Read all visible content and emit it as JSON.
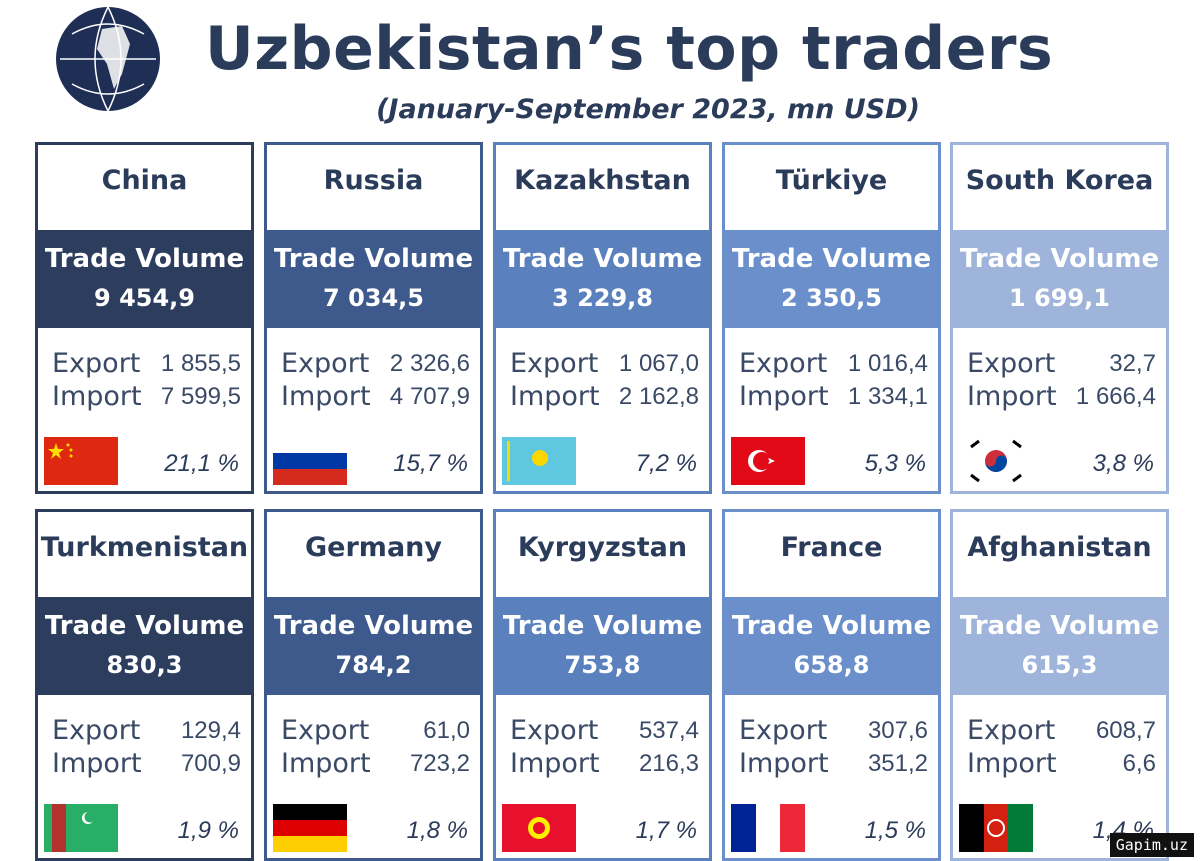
{
  "header": {
    "title": "Uzbekistan’s top traders",
    "subtitle": "(January-September 2023, mn USD)"
  },
  "cards": [
    {
      "country": "China",
      "trade_label": "Trade Volume",
      "trade_volume": "9 454,9",
      "export_label": "Export",
      "export": "1 855,5",
      "import_label": "Import",
      "import": "7 599,5",
      "share": "21,1 %"
    },
    {
      "country": "Russia",
      "trade_label": "Trade Volume",
      "trade_volume": "7 034,5",
      "export_label": "Export",
      "export": "2 326,6",
      "import_label": "Import",
      "import": "4 707,9",
      "share": "15,7 %"
    },
    {
      "country": "Kazakhstan",
      "trade_label": "Trade Volume",
      "trade_volume": "3 229,8",
      "export_label": "Export",
      "export": "1 067,0",
      "import_label": "Import",
      "import": "2 162,8",
      "share": "7,2 %"
    },
    {
      "country": "Türkiye",
      "trade_label": "Trade Volume",
      "trade_volume": "2 350,5",
      "export_label": "Export",
      "export": "1 016,4",
      "import_label": "Import",
      "import": "1 334,1",
      "share": "5,3 %"
    },
    {
      "country": "South Korea",
      "trade_label": "Trade Volume",
      "trade_volume": "1 699,1",
      "export_label": "Export",
      "export": "32,7",
      "import_label": "Import",
      "import": "1 666,4",
      "share": "3,8 %"
    },
    {
      "country": "Turkmenistan",
      "trade_label": "Trade Volume",
      "trade_volume": "830,3",
      "export_label": "Export",
      "export": "129,4",
      "import_label": "Import",
      "import": "700,9",
      "share": "1,9 %"
    },
    {
      "country": "Germany",
      "trade_label": "Trade Volume",
      "trade_volume": "784,2",
      "export_label": "Export",
      "export": "61,0",
      "import_label": "Import",
      "import": "723,2",
      "share": "1,8 %"
    },
    {
      "country": "Kyrgyzstan",
      "trade_label": "Trade Volume",
      "trade_volume": "753,8",
      "export_label": "Export",
      "export": "537,4",
      "import_label": "Import",
      "import": "216,3",
      "share": "1,7 %"
    },
    {
      "country": "France",
      "trade_label": "Trade Volume",
      "trade_volume": "658,8",
      "export_label": "Export",
      "export": "307,6",
      "import_label": "Import",
      "import": "351,2",
      "share": "1,5 %"
    },
    {
      "country": "Afghanistan",
      "trade_label": "Trade Volume",
      "trade_volume": "615,3",
      "export_label": "Export",
      "export": "608,7",
      "import_label": "Import",
      "import": "6,6",
      "share": "1,4 %"
    }
  ],
  "watermark": "Gapim.uz"
}
